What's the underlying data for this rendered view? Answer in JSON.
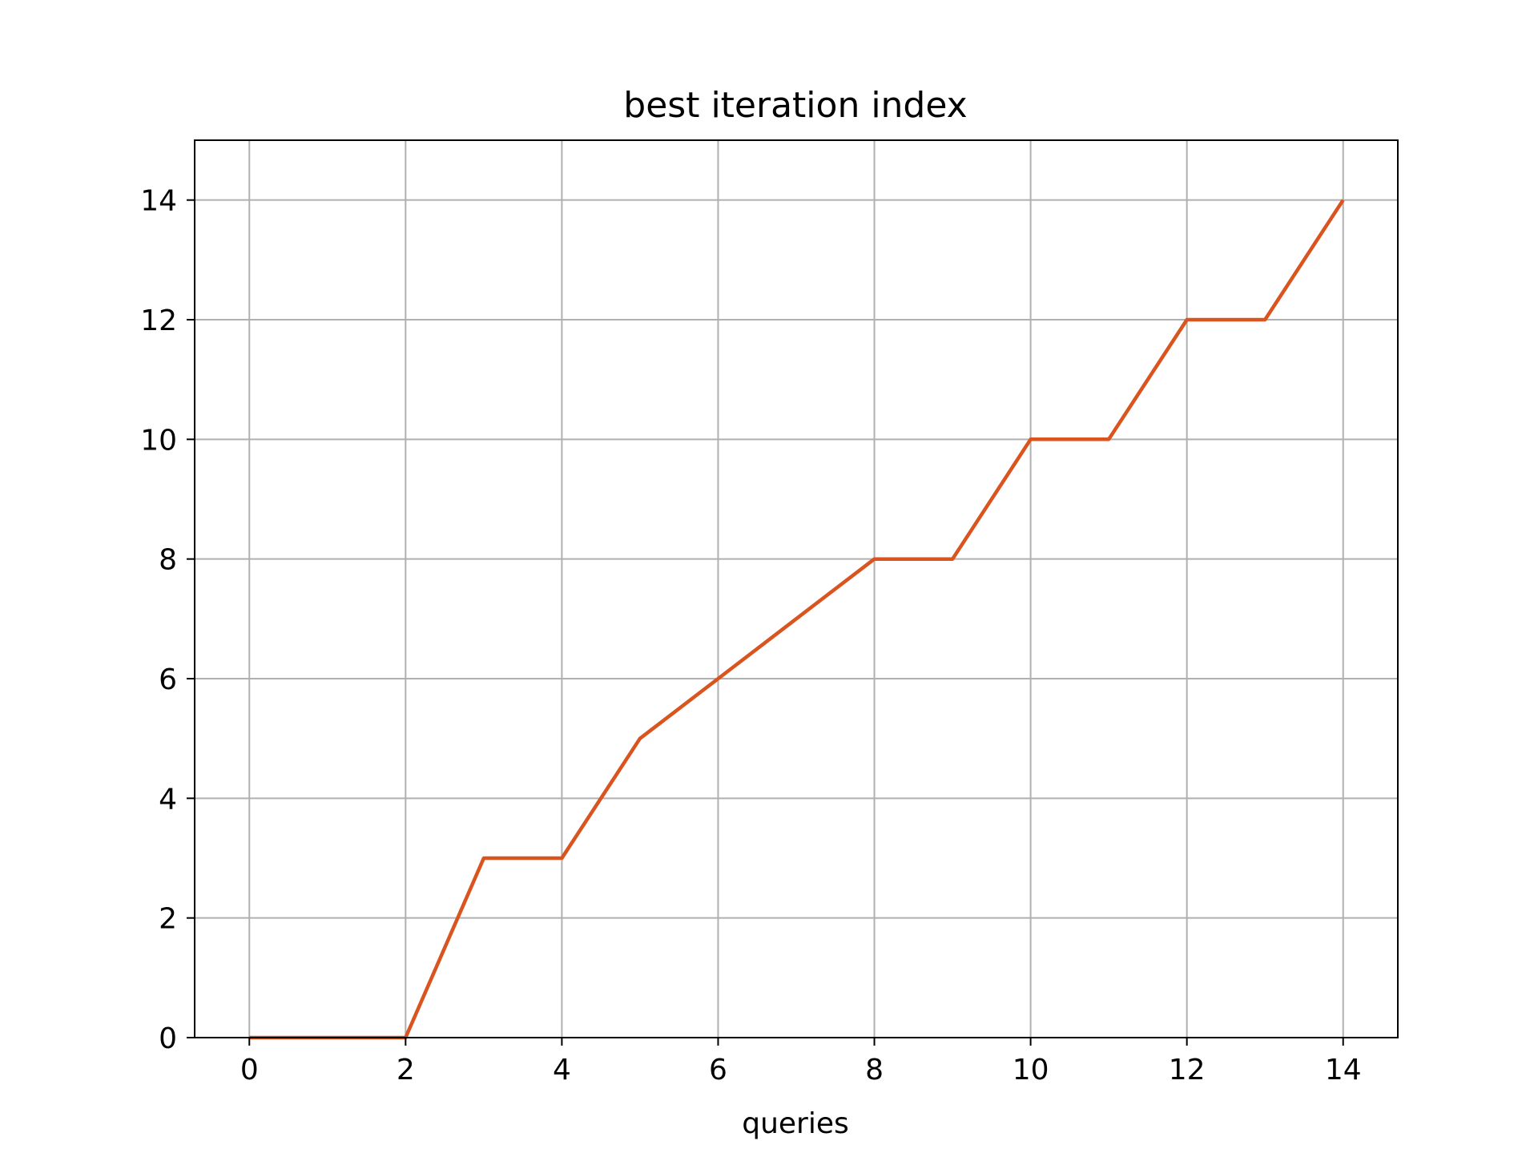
{
  "chart_data": {
    "type": "line",
    "title": "best iteration index",
    "xlabel": "queries",
    "ylabel": "",
    "xlim": [
      -0.7,
      14.7
    ],
    "ylim": [
      0,
      15
    ],
    "xticks": [
      0,
      2,
      4,
      6,
      8,
      10,
      12,
      14
    ],
    "yticks": [
      0,
      2,
      4,
      6,
      8,
      10,
      12,
      14
    ],
    "grid": true,
    "legend": "none",
    "series": [
      {
        "color": "#d9541e",
        "x": [
          0,
          1,
          2,
          3,
          4,
          5,
          6,
          7,
          8,
          9,
          10,
          11,
          12,
          13,
          14
        ],
        "y": [
          0,
          0,
          0,
          3,
          3,
          5,
          6,
          7,
          8,
          8,
          10,
          10,
          12,
          12,
          14
        ]
      }
    ]
  },
  "colors": {
    "grid": "#b0b0b0",
    "axes": "#000000",
    "background": "#ffffff"
  }
}
